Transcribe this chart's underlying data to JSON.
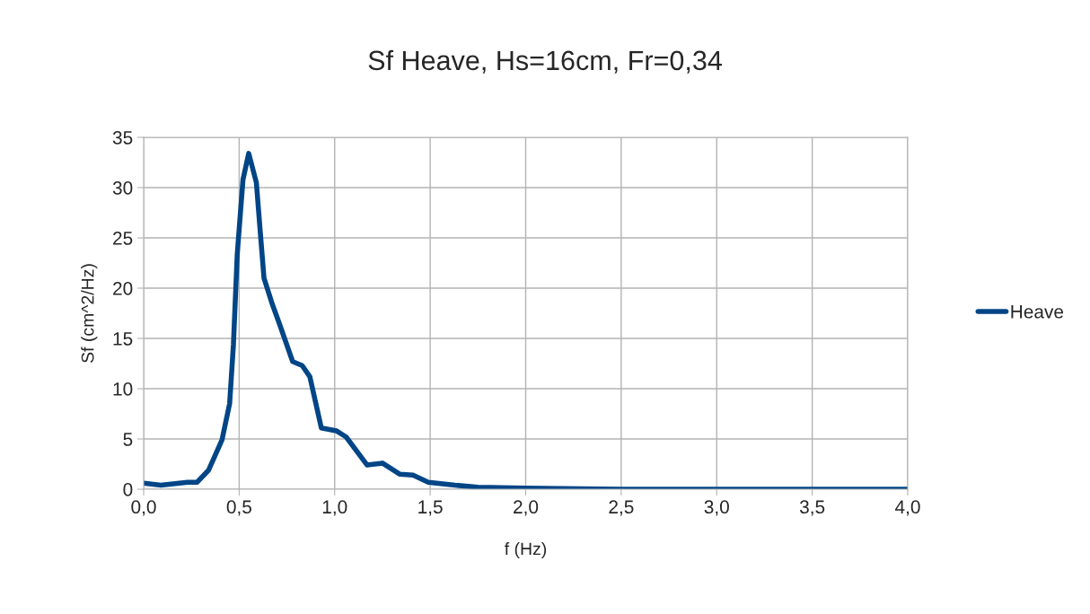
{
  "chart_data": {
    "type": "line",
    "title": "Sf Heave, Hs=16cm, Fr=0,34",
    "xlabel": "f (Hz)",
    "ylabel": "Sf (cm^2/Hz)",
    "series": [
      {
        "name": "Heave",
        "color": "#004586",
        "x": [
          0.0,
          0.09,
          0.23,
          0.28,
          0.34,
          0.41,
          0.45,
          0.47,
          0.49,
          0.52,
          0.55,
          0.59,
          0.61,
          0.63,
          0.67,
          0.71,
          0.78,
          0.83,
          0.87,
          0.93,
          1.01,
          1.06,
          1.17,
          1.25,
          1.34,
          1.41,
          1.49,
          1.63,
          1.75,
          2.0,
          2.5,
          3.0,
          4.0
        ],
        "values": [
          0.6,
          0.4,
          0.7,
          0.7,
          1.9,
          4.9,
          8.5,
          14.4,
          23.4,
          30.8,
          33.4,
          30.5,
          25.7,
          21.0,
          18.6,
          16.5,
          12.7,
          12.3,
          11.2,
          6.1,
          5.8,
          5.2,
          2.4,
          2.6,
          1.5,
          1.4,
          0.7,
          0.4,
          0.2,
          0.1,
          0.0,
          0.0,
          0.0
        ]
      }
    ],
    "xlim": [
      0,
      4
    ],
    "xticks": [
      {
        "value": 0,
        "label": "0,0"
      },
      {
        "value": 0.5,
        "label": "0,5"
      },
      {
        "value": 1,
        "label": "1,0"
      },
      {
        "value": 1.5,
        "label": "1,5"
      },
      {
        "value": 2,
        "label": "2,0"
      },
      {
        "value": 2.5,
        "label": "2,5"
      },
      {
        "value": 3,
        "label": "3,0"
      },
      {
        "value": 3.5,
        "label": "3,5"
      },
      {
        "value": 4,
        "label": "4,0"
      }
    ],
    "ylim": [
      0,
      35
    ],
    "yticks": [
      0,
      5,
      10,
      15,
      20,
      25,
      30,
      35
    ],
    "grid": true,
    "legend": "right",
    "marker": "none",
    "line_style": "solid"
  }
}
